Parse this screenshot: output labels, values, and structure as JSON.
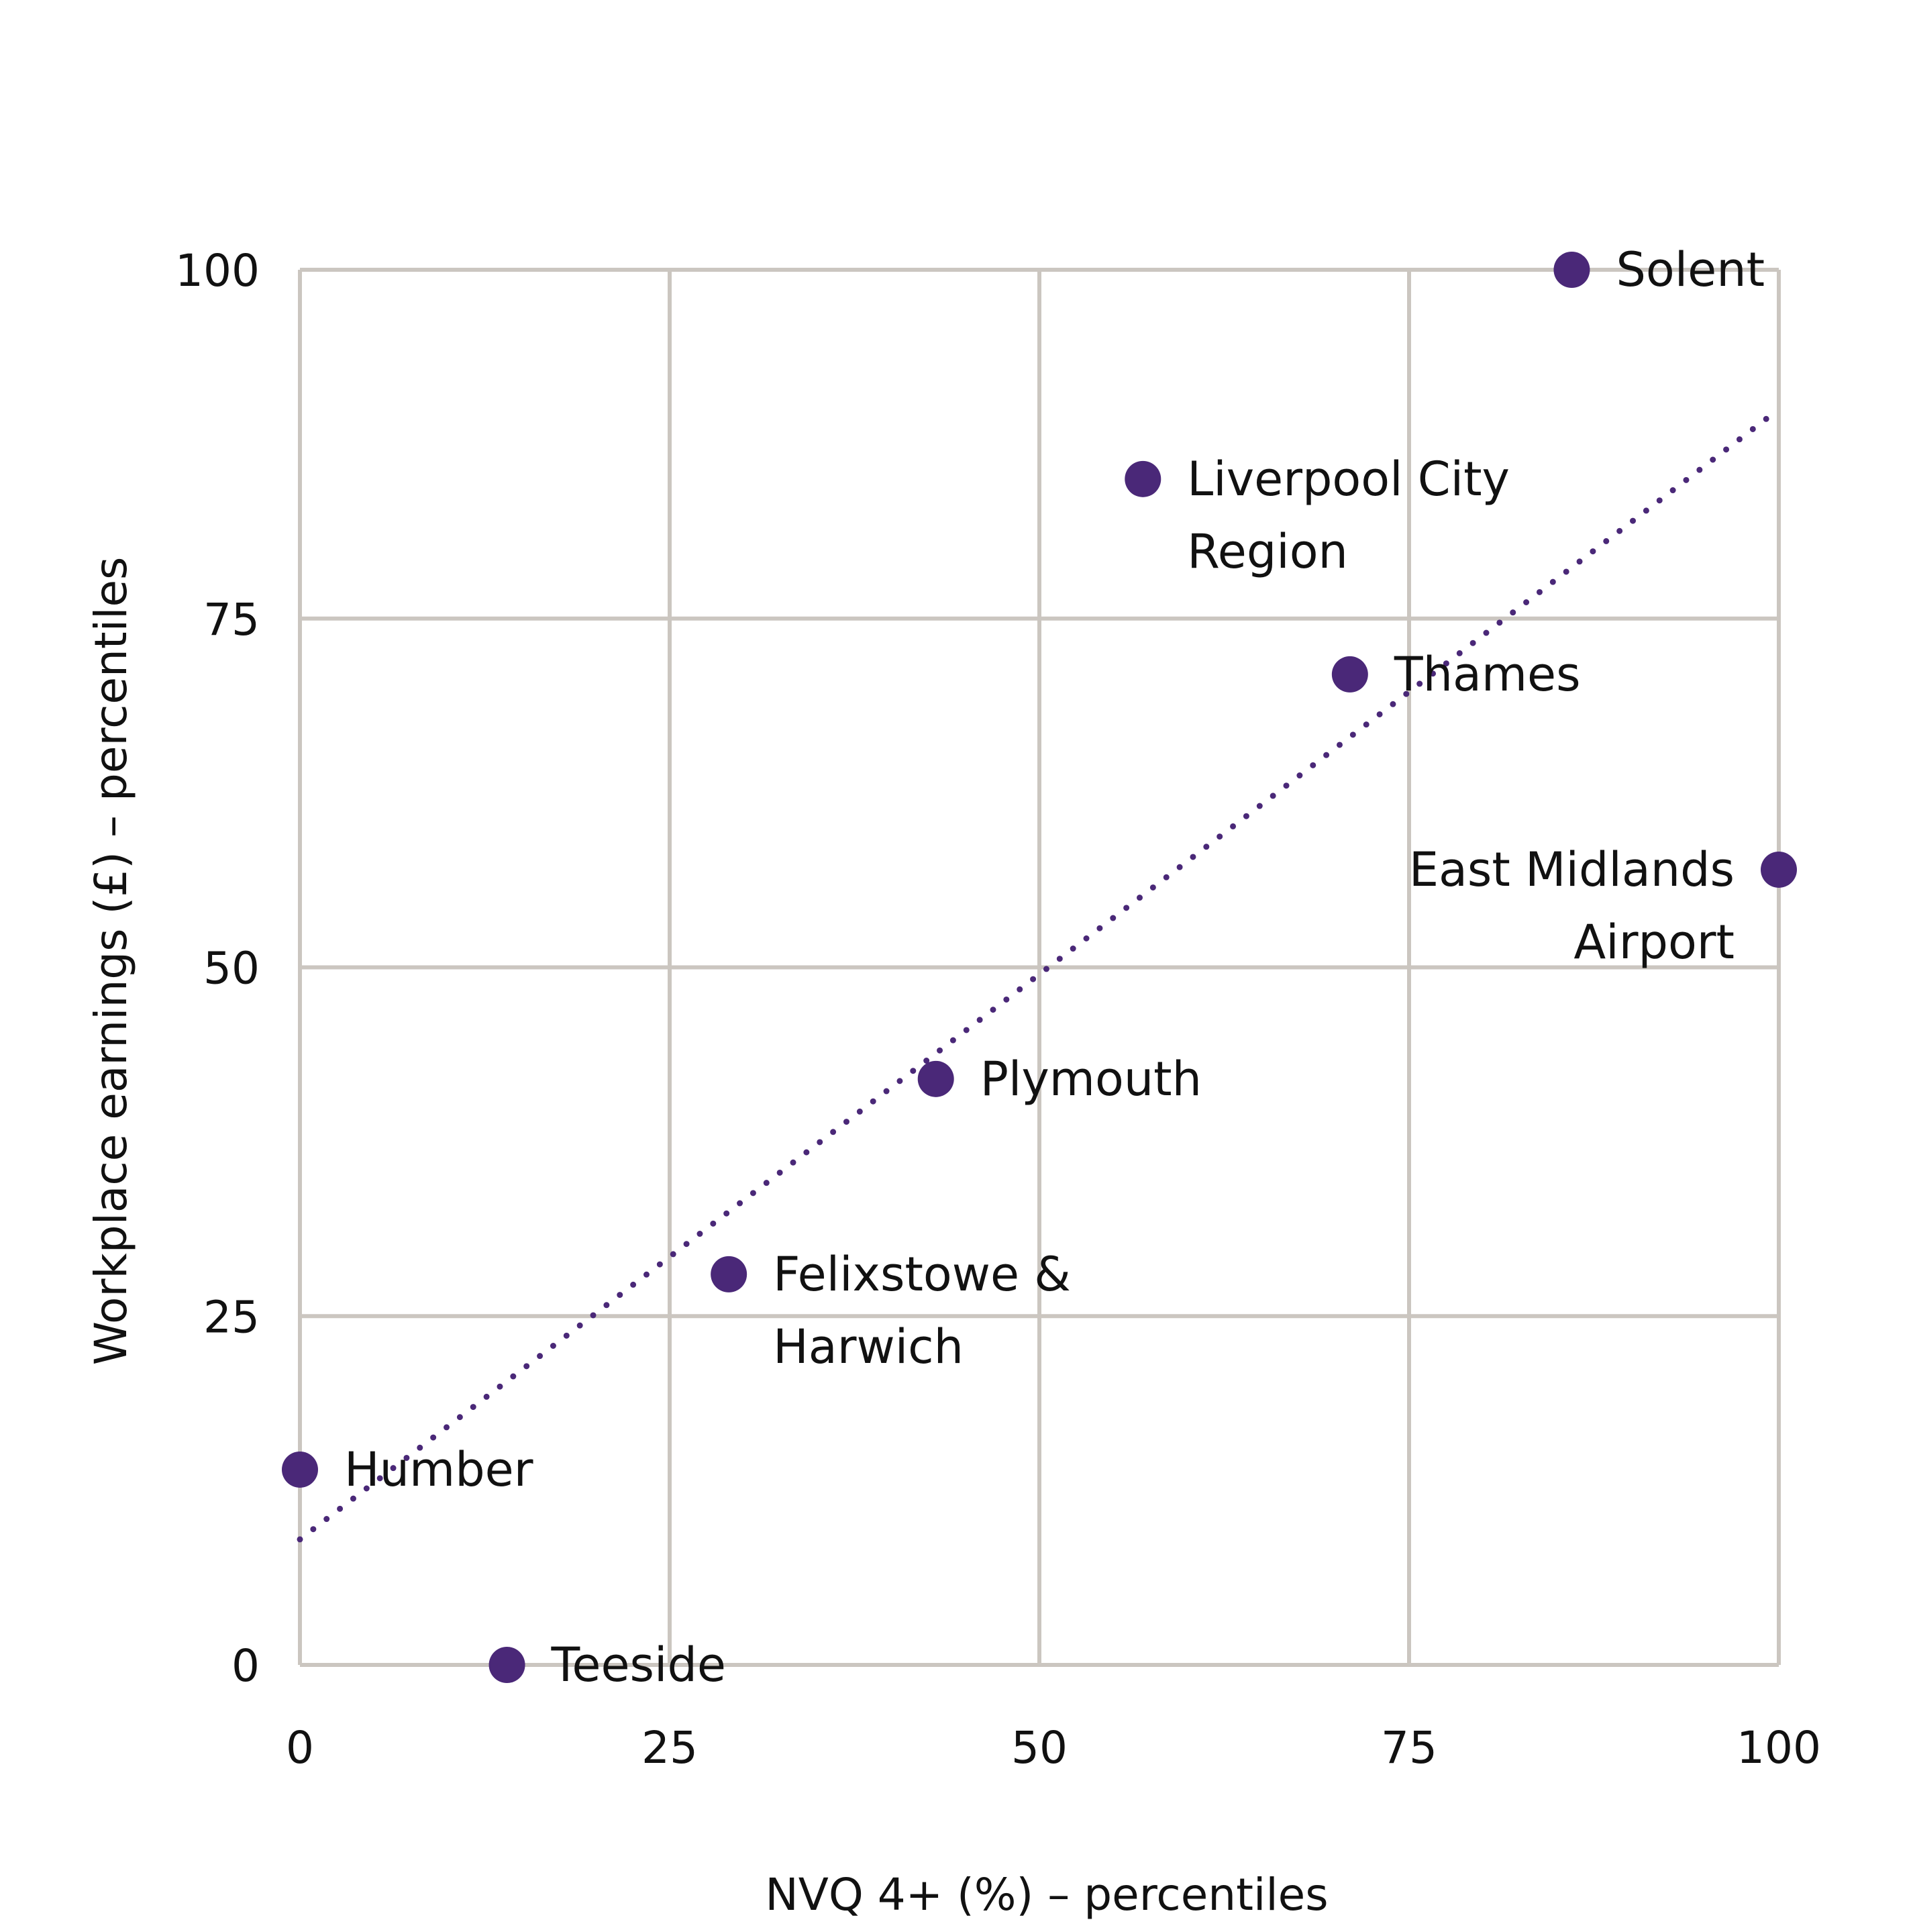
{
  "chart_data": {
    "type": "scatter",
    "title": "",
    "xlabel": "NVQ 4+ (%) – percentiles",
    "ylabel": "Workplace earnings (£) – percentiles",
    "xlim": [
      0,
      100
    ],
    "ylim": [
      0,
      100
    ],
    "xticks": [
      0,
      25,
      50,
      75,
      100
    ],
    "yticks": [
      0,
      25,
      50,
      75,
      100
    ],
    "grid": true,
    "colors": {
      "point": "#4a2878",
      "trend": "#4a2878",
      "grid": "#cbc6c0"
    },
    "points": [
      {
        "name": [
          "Solent"
        ],
        "x": 86,
        "y": 100,
        "label_side": "right"
      },
      {
        "name": [
          "Liverpool City",
          "Region"
        ],
        "x": 57,
        "y": 85,
        "label_side": "right"
      },
      {
        "name": [
          "Thames"
        ],
        "x": 71,
        "y": 71,
        "label_side": "right"
      },
      {
        "name": [
          "East Midlands",
          "Airport"
        ],
        "x": 100,
        "y": 57,
        "label_side": "left"
      },
      {
        "name": [
          "Plymouth"
        ],
        "x": 43,
        "y": 42,
        "label_side": "right"
      },
      {
        "name": [
          "Felixstowe &",
          "Harwich"
        ],
        "x": 29,
        "y": 28,
        "label_side": "right"
      },
      {
        "name": [
          "Humber"
        ],
        "x": 0,
        "y": 14,
        "label_side": "right"
      },
      {
        "name": [
          "Teeside"
        ],
        "x": 14,
        "y": 0,
        "label_side": "right"
      }
    ],
    "trendline": {
      "style": "dotted",
      "x": [
        0,
        100
      ],
      "y": [
        9,
        90
      ]
    }
  }
}
